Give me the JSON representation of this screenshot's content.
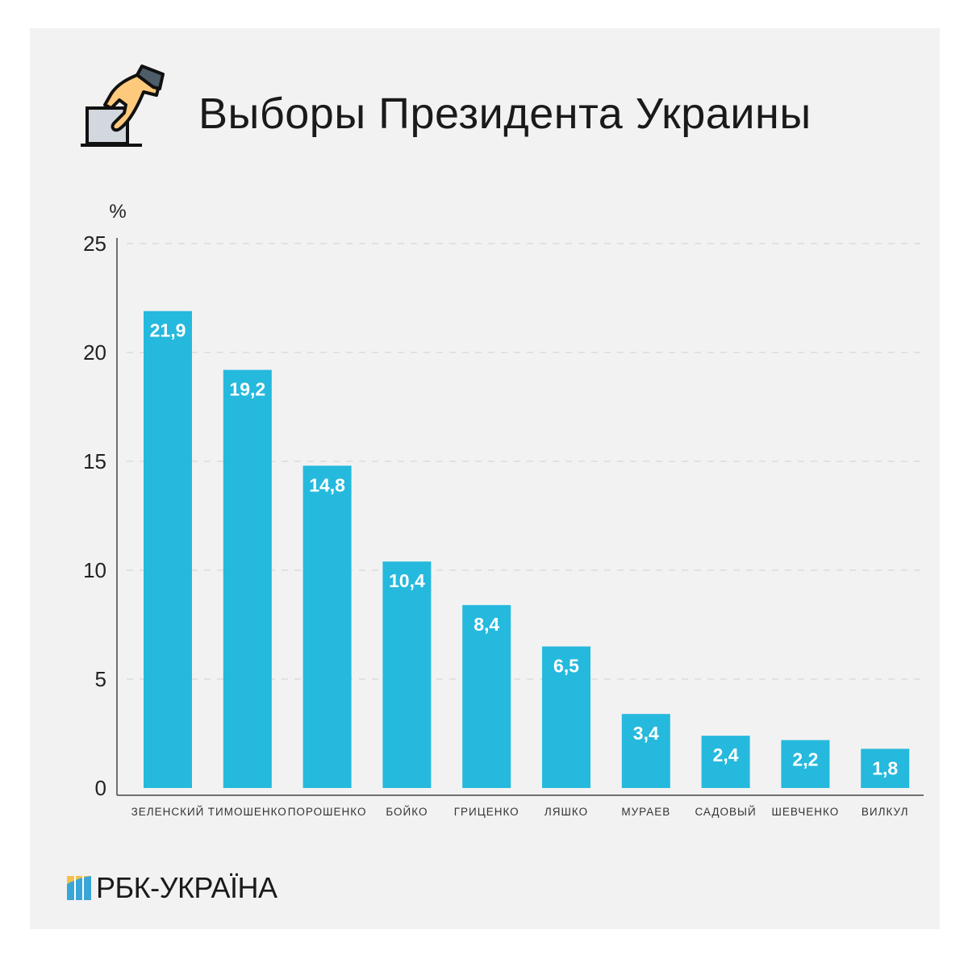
{
  "header": {
    "title": "Выборы Президента Украины",
    "icon": "ballot-box-hand-icon"
  },
  "footer": {
    "logo_text": "РБК-УКРАЇНА"
  },
  "colors": {
    "bar": "#25b9dd",
    "bar_label": "#ffffff",
    "background": "#f2f2f2",
    "grid": "#d0d0d0"
  },
  "chart_data": {
    "type": "bar",
    "title": "Выборы Президента Украины",
    "ylabel": "%",
    "xlabel": "",
    "ylim": [
      0,
      25
    ],
    "yticks": [
      0,
      5,
      10,
      15,
      20,
      25
    ],
    "grid": "horizontal dashed",
    "categories": [
      "ЗЕЛЕНСКИЙ",
      "ТИМОШЕНКО",
      "ПОРОШЕНКО",
      "БОЙКО",
      "ГРИЦЕНКО",
      "ЛЯШКО",
      "МУРАЕВ",
      "САДОВЫЙ",
      "ШЕВЧЕНКО",
      "ВИЛКУЛ"
    ],
    "values": [
      21.9,
      19.2,
      14.8,
      10.4,
      8.4,
      6.5,
      3.4,
      2.4,
      2.2,
      1.8
    ],
    "data_labels": [
      "21,9",
      "19,2",
      "14,8",
      "10,4",
      "8,4",
      "6,5",
      "3,4",
      "2,4",
      "2,2",
      "1,8"
    ]
  }
}
